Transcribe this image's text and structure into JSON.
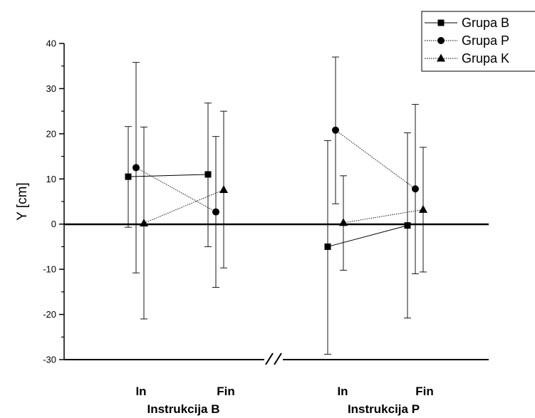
{
  "chart_data": {
    "type": "line",
    "ylabel": "Y [cm]",
    "ylim": [
      -30,
      40
    ],
    "yticks": [
      -30,
      -20,
      -10,
      0,
      10,
      20,
      30,
      40
    ],
    "y_tick_labels": [
      "-30",
      "-20",
      "-10",
      "0",
      "10",
      "20",
      "30",
      "40"
    ],
    "x_axis_break": true,
    "legend_position": "top-right",
    "groups": [
      {
        "name": "Instrukcija B",
        "categories": [
          "In",
          "Fin"
        ]
      },
      {
        "name": "Instrukcija P",
        "categories": [
          "In",
          "Fin"
        ]
      }
    ],
    "series": [
      {
        "name": "Grupa B",
        "marker": "square",
        "line_style": "solid",
        "points": [
          {
            "group": "Instrukcija B",
            "category": "In",
            "y": 10.5,
            "err_low": -0.7,
            "err_high": 21.6
          },
          {
            "group": "Instrukcija B",
            "category": "Fin",
            "y": 11.0,
            "err_low": -5.0,
            "err_high": 26.8
          },
          {
            "group": "Instrukcija P",
            "category": "In",
            "y": -5.0,
            "err_low": -28.8,
            "err_high": 18.5
          },
          {
            "group": "Instrukcija P",
            "category": "Fin",
            "y": -0.3,
            "err_low": -20.8,
            "err_high": 20.2
          }
        ]
      },
      {
        "name": "Grupa P",
        "marker": "circle",
        "line_style": "dotted",
        "points": [
          {
            "group": "Instrukcija B",
            "category": "In",
            "y": 12.5,
            "err_low": -10.8,
            "err_high": 35.8
          },
          {
            "group": "Instrukcija B",
            "category": "Fin",
            "y": 2.7,
            "err_low": -14.0,
            "err_high": 19.4
          },
          {
            "group": "Instrukcija P",
            "category": "In",
            "y": 20.8,
            "err_low": 4.5,
            "err_high": 37.0
          },
          {
            "group": "Instrukcija P",
            "category": "Fin",
            "y": 7.8,
            "err_low": -11.0,
            "err_high": 26.5
          }
        ]
      },
      {
        "name": "Grupa K",
        "marker": "triangle",
        "line_style": "dotted",
        "points": [
          {
            "group": "Instrukcija B",
            "category": "In",
            "y": 0.2,
            "err_low": -21.0,
            "err_high": 21.5
          },
          {
            "group": "Instrukcija B",
            "category": "Fin",
            "y": 7.6,
            "err_low": -9.7,
            "err_high": 25.0
          },
          {
            "group": "Instrukcija P",
            "category": "In",
            "y": 0.3,
            "err_low": -10.2,
            "err_high": 10.7
          },
          {
            "group": "Instrukcija P",
            "category": "Fin",
            "y": 3.2,
            "err_low": -10.6,
            "err_high": 17.0
          }
        ]
      }
    ]
  }
}
